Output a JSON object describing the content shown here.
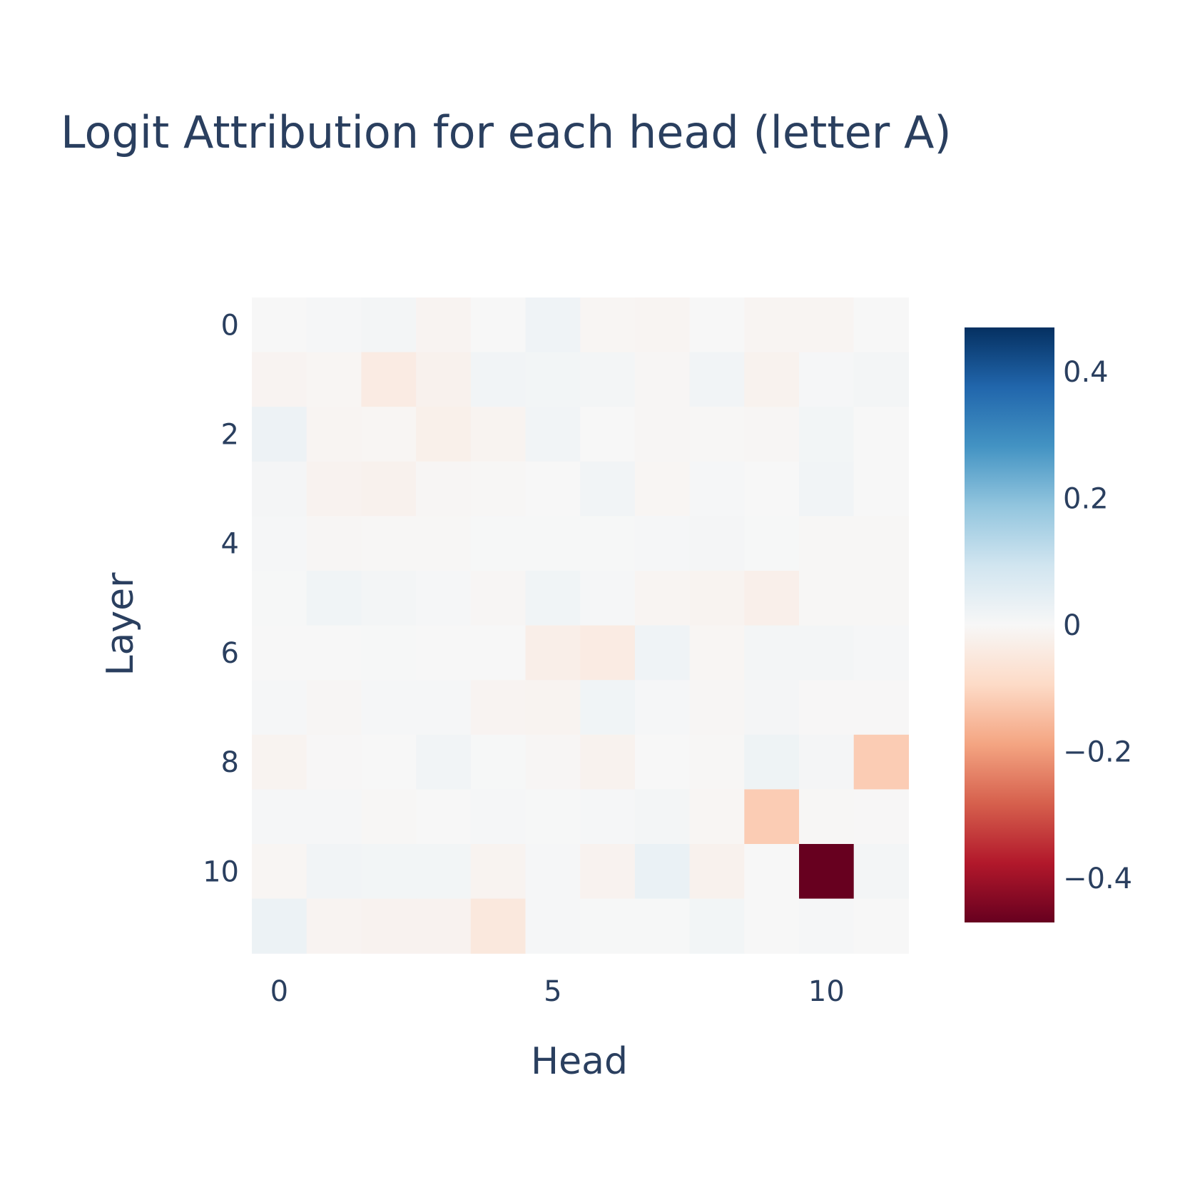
{
  "chart_data": {
    "type": "heatmap",
    "title": "Logit Attribution for each head (letter A)",
    "xlabel": "Head",
    "ylabel": "Layer",
    "x_categories": [
      0,
      1,
      2,
      3,
      4,
      5,
      6,
      7,
      8,
      9,
      10,
      11
    ],
    "y_categories": [
      0,
      1,
      2,
      3,
      4,
      5,
      6,
      7,
      8,
      9,
      10,
      11
    ],
    "x_tick_labels": [
      "0",
      "5",
      "10"
    ],
    "x_tick_values": [
      0,
      5,
      10
    ],
    "y_tick_labels": [
      "0",
      "2",
      "4",
      "6",
      "8",
      "10"
    ],
    "y_tick_values": [
      0,
      2,
      4,
      6,
      8,
      10
    ],
    "zlim": [
      -0.47,
      0.47
    ],
    "colorbar": {
      "tick_labels": [
        "0.4",
        "0.2",
        "0",
        "−0.2",
        "−0.4"
      ],
      "tick_values": [
        0.4,
        0.2,
        0,
        -0.2,
        -0.4
      ]
    },
    "colorscale": [
      [
        0.0,
        "#67001f"
      ],
      [
        0.1,
        "#b2182b"
      ],
      [
        0.2,
        "#d6604d"
      ],
      [
        0.3,
        "#f4a582"
      ],
      [
        0.4,
        "#fddbc7"
      ],
      [
        0.5,
        "#f7f7f7"
      ],
      [
        0.6,
        "#d1e5f0"
      ],
      [
        0.7,
        "#92c5de"
      ],
      [
        0.8,
        "#4393c3"
      ],
      [
        0.9,
        "#2166ac"
      ],
      [
        1.0,
        "#053061"
      ]
    ],
    "z": [
      [
        0.0,
        0.004,
        0.01,
        -0.012,
        0.0,
        0.02,
        -0.008,
        -0.01,
        0.0,
        -0.01,
        -0.01,
        0.0
      ],
      [
        -0.012,
        -0.008,
        -0.04,
        -0.02,
        0.016,
        0.012,
        0.01,
        -0.006,
        0.016,
        -0.018,
        0.006,
        0.01
      ],
      [
        0.024,
        -0.01,
        -0.008,
        -0.025,
        -0.014,
        0.014,
        0.0,
        -0.006,
        -0.004,
        -0.006,
        0.012,
        0.0
      ],
      [
        0.008,
        -0.016,
        -0.02,
        -0.006,
        -0.004,
        0.0,
        0.014,
        -0.008,
        0.004,
        0.0,
        0.016,
        0.0
      ],
      [
        0.006,
        -0.006,
        -0.004,
        -0.004,
        0.002,
        0.002,
        0.002,
        0.006,
        0.008,
        0.002,
        -0.004,
        -0.004
      ],
      [
        0.002,
        0.018,
        0.01,
        0.004,
        -0.006,
        0.018,
        0.006,
        -0.01,
        -0.014,
        -0.026,
        -0.004,
        -0.004
      ],
      [
        0.0,
        0.0,
        0.002,
        0.0,
        0.0,
        -0.03,
        -0.04,
        0.02,
        -0.008,
        0.01,
        0.01,
        0.006
      ],
      [
        0.004,
        -0.006,
        0.004,
        0.004,
        -0.012,
        -0.014,
        0.018,
        0.004,
        -0.006,
        0.008,
        -0.002,
        -0.002
      ],
      [
        -0.014,
        -0.002,
        0.0,
        0.016,
        0.002,
        -0.006,
        -0.018,
        0.0,
        -0.004,
        0.022,
        0.008,
        -0.12
      ],
      [
        0.004,
        0.006,
        -0.004,
        0.0,
        0.006,
        0.002,
        0.004,
        0.01,
        -0.008,
        -0.12,
        -0.004,
        -0.002
      ],
      [
        -0.008,
        0.016,
        0.012,
        0.012,
        -0.014,
        0.004,
        -0.016,
        0.032,
        -0.02,
        0.0,
        -0.47,
        0.01
      ],
      [
        0.026,
        -0.012,
        -0.016,
        -0.016,
        -0.05,
        0.004,
        0.002,
        0.002,
        0.012,
        0.0,
        0.004,
        0.0
      ]
    ]
  }
}
